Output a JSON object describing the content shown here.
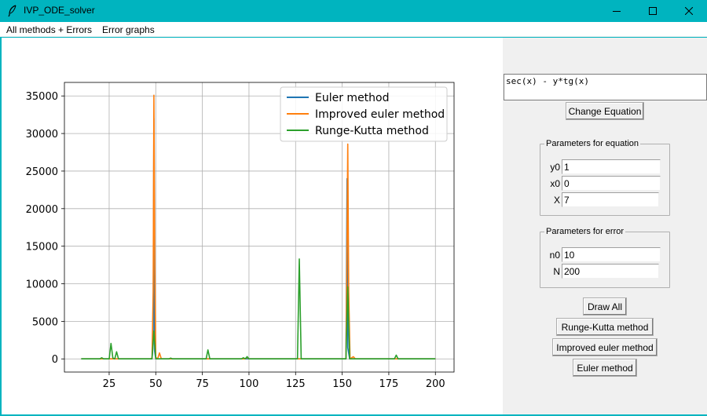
{
  "window": {
    "title": "IVP_ODE_solver",
    "title_color": "#00b4bf"
  },
  "menu": {
    "items": [
      "All methods + Errors",
      "Error graphs"
    ]
  },
  "equation": {
    "text": "sec(x) - y*tg(x)"
  },
  "buttons": {
    "change_equation": "Change Equation",
    "draw_all": "Draw All",
    "runge_kutta": "Runge-Kutta method",
    "improved_euler": "Improved euler method",
    "euler": "Euler method"
  },
  "equation_params": {
    "legend": "Parameters for equation",
    "y0_label": "y0",
    "y0": "1",
    "x0_label": "x0",
    "x0": "0",
    "X_label": "X",
    "X": "7"
  },
  "error_params": {
    "legend": "Parameters for error",
    "n0_label": "n0",
    "n0": "10",
    "N_label": "N",
    "N": "200"
  },
  "chart_data": {
    "type": "line",
    "title": "",
    "xlabel": "",
    "ylabel": "",
    "xlim": [
      1,
      210
    ],
    "ylim": [
      -1750,
      36800
    ],
    "xticks": [
      25,
      50,
      75,
      100,
      125,
      150,
      175,
      200
    ],
    "yticks": [
      0,
      5000,
      10000,
      15000,
      20000,
      25000,
      30000,
      35000
    ],
    "grid": true,
    "legend_position": "top-right",
    "series": [
      {
        "name": "Euler method",
        "color": "#1f77b4",
        "points": [
          [
            10,
            0
          ],
          [
            48,
            0
          ],
          [
            48.6,
            2000
          ],
          [
            49,
            32000
          ],
          [
            49.4,
            1000
          ],
          [
            50,
            0
          ],
          [
            152,
            0
          ],
          [
            152.6,
            24000
          ],
          [
            153,
            1500
          ],
          [
            154,
            0
          ],
          [
            200,
            0
          ]
        ]
      },
      {
        "name": "Improved euler method",
        "color": "#ff7f0e",
        "points": [
          [
            10,
            0
          ],
          [
            47,
            0
          ],
          [
            48,
            100
          ],
          [
            48.6,
            9000
          ],
          [
            49,
            35100
          ],
          [
            49.5,
            12000
          ],
          [
            50,
            200
          ],
          [
            51,
            0
          ],
          [
            52,
            800
          ],
          [
            53,
            0
          ],
          [
            98,
            0
          ],
          [
            99,
            200
          ],
          [
            100,
            0
          ],
          [
            152,
            0
          ],
          [
            152.5,
            12000
          ],
          [
            153,
            28600
          ],
          [
            153.5,
            9000
          ],
          [
            154.2,
            0
          ],
          [
            156,
            300
          ],
          [
            157,
            0
          ],
          [
            200,
            0
          ]
        ]
      },
      {
        "name": "Runge-Kutta method",
        "color": "#2ca02c",
        "points": [
          [
            10,
            0
          ],
          [
            20,
            0
          ],
          [
            21,
            150
          ],
          [
            22,
            0
          ],
          [
            25,
            0
          ],
          [
            26,
            2050
          ],
          [
            27,
            100
          ],
          [
            28,
            0
          ],
          [
            29,
            950
          ],
          [
            30,
            0
          ],
          [
            48,
            0
          ],
          [
            49,
            3700
          ],
          [
            50,
            0
          ],
          [
            57,
            0
          ],
          [
            58,
            100
          ],
          [
            59,
            0
          ],
          [
            77,
            0
          ],
          [
            78,
            1200
          ],
          [
            79,
            0
          ],
          [
            96,
            0
          ],
          [
            97,
            150
          ],
          [
            98,
            0
          ],
          [
            99,
            300
          ],
          [
            100,
            0
          ],
          [
            126,
            0
          ],
          [
            127,
            13300
          ],
          [
            128,
            0
          ],
          [
            152,
            0
          ],
          [
            153,
            9600
          ],
          [
            154,
            0
          ],
          [
            178,
            0
          ],
          [
            179,
            500
          ],
          [
            180,
            0
          ],
          [
            200,
            0
          ]
        ]
      }
    ]
  }
}
